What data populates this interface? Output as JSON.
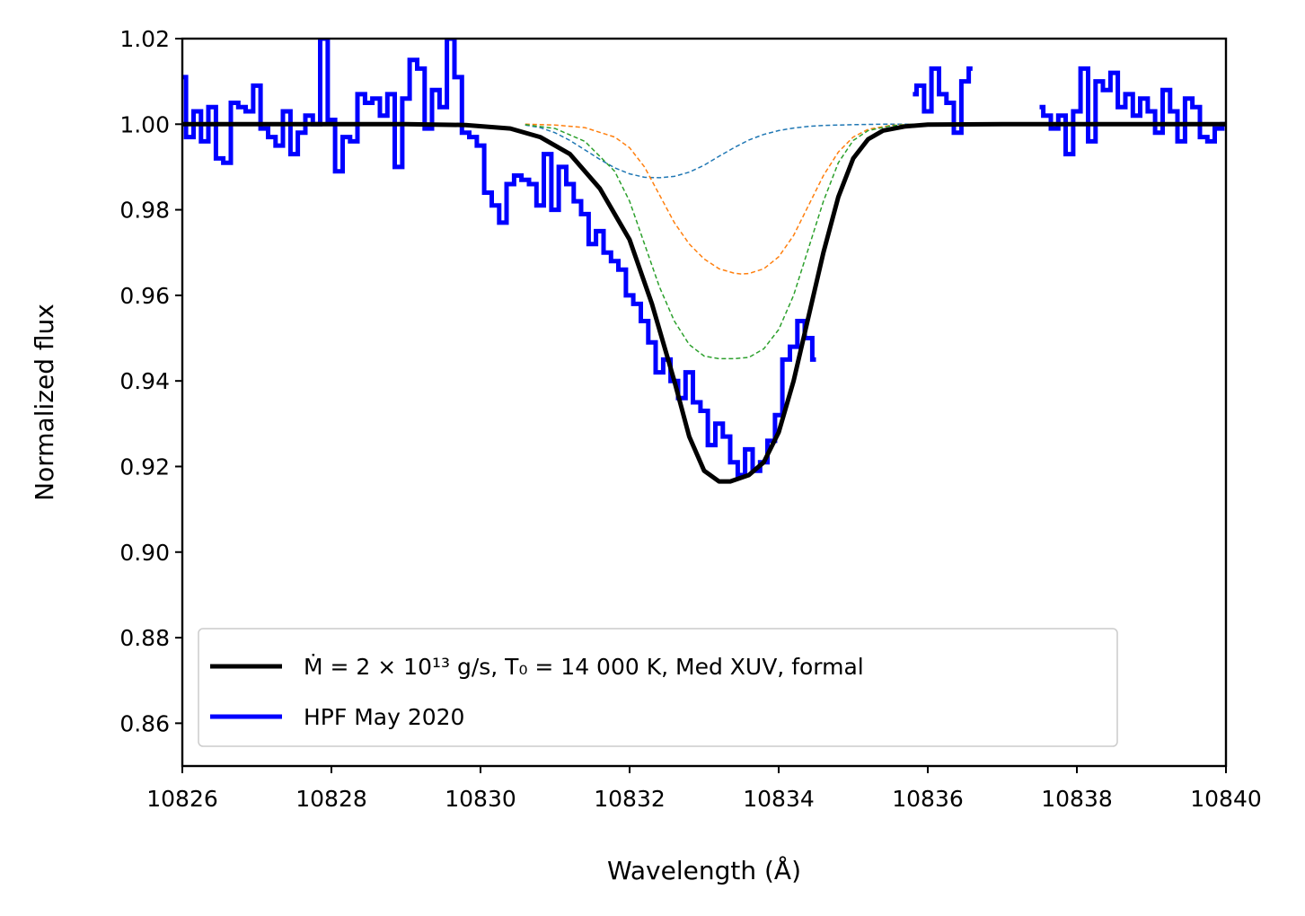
{
  "chart_data": {
    "type": "line",
    "title": "",
    "xlabel": "Wavelength (Å)",
    "ylabel": "Normalized flux",
    "xlim": [
      10826,
      10840
    ],
    "ylim": [
      0.85,
      1.02
    ],
    "x_ticks": [
      10826,
      10828,
      10830,
      10832,
      10834,
      10836,
      10838,
      10840
    ],
    "y_ticks": [
      0.86,
      0.88,
      0.9,
      0.92,
      0.94,
      0.96,
      0.98,
      1.0,
      1.02
    ],
    "x_tick_labels": [
      "10826",
      "10828",
      "10830",
      "10832",
      "10834",
      "10836",
      "10838",
      "10840"
    ],
    "y_tick_labels": [
      "0.86",
      "0.88",
      "0.90",
      "0.92",
      "0.94",
      "0.96",
      "0.98",
      "1.00",
      "1.02"
    ],
    "grid": false,
    "legend_position": "lower-left",
    "legend": [
      {
        "label": "Ṁ = 2 × 10¹³ g/s, T₀ = 14 000 K, Med XUV, formal",
        "color": "#000000"
      },
      {
        "label": "HPF May 2020",
        "color": "#0000ff"
      }
    ],
    "series": [
      {
        "name": "Ṁ = 2 × 10¹³ g/s, T₀ = 14 000 K, Med XUV, formal",
        "kind": "model",
        "color": "#000000",
        "x": [
          10826.0,
          10829.0,
          10829.8,
          10830.4,
          10830.8,
          10831.2,
          10831.6,
          10832.0,
          10832.3,
          10832.6,
          10832.8,
          10833.0,
          10833.2,
          10833.35,
          10833.6,
          10833.8,
          10834.0,
          10834.2,
          10834.4,
          10834.6,
          10834.8,
          10835.0,
          10835.2,
          10835.4,
          10835.7,
          10836.0,
          10837.0,
          10840.0
        ],
        "y": [
          1.0,
          1.0,
          0.9998,
          0.999,
          0.997,
          0.993,
          0.985,
          0.973,
          0.958,
          0.94,
          0.927,
          0.919,
          0.9165,
          0.9165,
          0.918,
          0.921,
          0.928,
          0.94,
          0.955,
          0.97,
          0.983,
          0.992,
          0.9965,
          0.9985,
          0.9995,
          0.9999,
          1.0,
          1.0
        ]
      },
      {
        "name": "",
        "kind": "component",
        "color": "#1f77b4",
        "x": [
          10830.6,
          10830.8,
          10831.0,
          10831.2,
          10831.4,
          10831.6,
          10831.8,
          10832.0,
          10832.2,
          10832.4,
          10832.6,
          10832.8,
          10833.0,
          10833.2,
          10833.4,
          10833.6,
          10833.8,
          10834.0,
          10834.2,
          10834.4,
          10834.6,
          10835.0,
          10835.4,
          10835.8,
          10836.0
        ],
        "y": [
          0.9998,
          0.9992,
          0.998,
          0.9962,
          0.994,
          0.9918,
          0.9898,
          0.9884,
          0.9876,
          0.9875,
          0.9878,
          0.9888,
          0.9904,
          0.9925,
          0.9945,
          0.9963,
          0.9976,
          0.9985,
          0.9991,
          0.9995,
          0.9997,
          0.9999,
          1.0,
          1.0,
          1.0
        ]
      },
      {
        "name": "",
        "kind": "component",
        "color": "#ff7f0e",
        "x": [
          10830.6,
          10831.0,
          10831.4,
          10831.8,
          10832.0,
          10832.2,
          10832.4,
          10832.6,
          10832.8,
          10833.0,
          10833.2,
          10833.4,
          10833.5,
          10833.6,
          10833.8,
          10834.0,
          10834.2,
          10834.4,
          10834.6,
          10834.8,
          10835.0,
          10835.2,
          10835.5,
          10835.8,
          10836.0
        ],
        "y": [
          1.0,
          0.9998,
          0.9992,
          0.997,
          0.9945,
          0.99,
          0.9835,
          0.977,
          0.972,
          0.9685,
          0.9662,
          0.9652,
          0.965,
          0.9651,
          0.9662,
          0.969,
          0.974,
          0.981,
          0.988,
          0.9935,
          0.997,
          0.9988,
          0.9997,
          1.0,
          1.0
        ]
      },
      {
        "name": "",
        "kind": "component",
        "color": "#2ca02c",
        "x": [
          10830.6,
          10831.0,
          10831.4,
          10831.8,
          10832.0,
          10832.2,
          10832.4,
          10832.6,
          10832.8,
          10833.0,
          10833.2,
          10833.4,
          10833.6,
          10833.8,
          10834.0,
          10834.2,
          10834.4,
          10834.6,
          10834.8,
          10835.0,
          10835.2,
          10835.5,
          10835.8,
          10836.0
        ],
        "y": [
          0.9999,
          0.999,
          0.996,
          0.989,
          0.982,
          0.972,
          0.962,
          0.954,
          0.9485,
          0.9458,
          0.9452,
          0.9452,
          0.9455,
          0.9475,
          0.952,
          0.96,
          0.971,
          0.982,
          0.991,
          0.9962,
          0.9985,
          0.9996,
          1.0,
          1.0
        ]
      },
      {
        "name": "HPF May 2020",
        "kind": "data",
        "color": "#0000ff",
        "segments": [
          {
            "x": [
              10826.0,
              10826.1,
              10826.2,
              10826.3,
              10826.4,
              10826.5,
              10826.6,
              10826.7,
              10826.8,
              10826.9,
              10827.0,
              10827.1,
              10827.2,
              10827.3,
              10827.4,
              10827.5,
              10827.6,
              10827.7,
              10827.8,
              10827.9,
              10828.0,
              10828.1,
              10828.2,
              10828.3,
              10828.4,
              10828.5,
              10828.6,
              10828.7,
              10828.8,
              10828.9,
              10829.0,
              10829.1,
              10829.2,
              10829.3,
              10829.4,
              10829.5,
              10829.6,
              10829.7,
              10829.8,
              10829.9,
              10830.0,
              10830.1,
              10830.2,
              10830.3,
              10830.4,
              10830.5,
              10830.6,
              10830.7,
              10830.8,
              10830.9,
              10831.0,
              10831.1,
              10831.2,
              10831.3,
              10831.4,
              10831.5,
              10831.6,
              10831.7,
              10831.8,
              10831.9,
              10832.0,
              10832.1,
              10832.2,
              10832.3,
              10832.4,
              10832.5,
              10832.6,
              10832.7,
              10832.8,
              10832.9,
              10833.0,
              10833.1,
              10833.2,
              10833.3,
              10833.4,
              10833.5,
              10833.6,
              10833.7,
              10833.8,
              10833.9,
              10834.0,
              10834.1,
              10834.2,
              10834.3,
              10834.4,
              10834.5
            ],
            "y": [
              1.011,
              0.997,
              1.003,
              0.996,
              1.004,
              0.992,
              0.991,
              1.005,
              1.004,
              1.003,
              1.009,
              0.999,
              0.997,
              0.995,
              1.003,
              0.993,
              0.998,
              1.002,
              1.0,
              1.02,
              1.001,
              0.989,
              0.997,
              0.996,
              1.007,
              1.005,
              1.006,
              1.002,
              1.007,
              0.99,
              1.006,
              1.015,
              1.013,
              0.999,
              1.008,
              1.004,
              1.02,
              1.011,
              0.998,
              0.997,
              0.995,
              0.984,
              0.981,
              0.977,
              0.986,
              0.988,
              0.987,
              0.986,
              0.981,
              0.993,
              0.98,
              0.99,
              0.986,
              0.982,
              0.979,
              0.972,
              0.975,
              0.97,
              0.968,
              0.966,
              0.96,
              0.958,
              0.954,
              0.949,
              0.942,
              0.945,
              0.94,
              0.936,
              0.942,
              0.935,
              0.933,
              0.925,
              0.93,
              0.927,
              0.921,
              0.918,
              0.924,
              0.919,
              0.921,
              0.926,
              0.932,
              0.945,
              0.948,
              0.954,
              0.95,
              0.945
            ]
          },
          {
            "x": [
              10835.8,
              10835.9,
              10836.0,
              10836.1,
              10836.2,
              10836.3,
              10836.4,
              10836.5,
              10836.6
            ],
            "y": [
              1.007,
              1.009,
              1.003,
              1.013,
              1.007,
              1.005,
              0.998,
              1.01,
              1.013
            ]
          },
          {
            "x": [
              10837.5,
              10837.6,
              10837.7,
              10837.8,
              10837.9,
              10838.0,
              10838.1,
              10838.2,
              10838.3,
              10838.4,
              10838.5,
              10838.6,
              10838.7,
              10838.8,
              10838.9,
              10839.0,
              10839.1,
              10839.2,
              10839.3,
              10839.4,
              10839.5,
              10839.6,
              10839.7,
              10839.8,
              10839.9,
              10840.0
            ],
            "y": [
              1.004,
              1.002,
              0.999,
              1.002,
              0.993,
              1.003,
              1.013,
              0.996,
              1.01,
              1.008,
              1.012,
              1.004,
              1.007,
              1.002,
              1.006,
              1.003,
              0.998,
              1.008,
              1.003,
              0.996,
              1.006,
              1.004,
              0.997,
              0.996,
              0.999,
              1.0
            ]
          }
        ]
      }
    ]
  }
}
